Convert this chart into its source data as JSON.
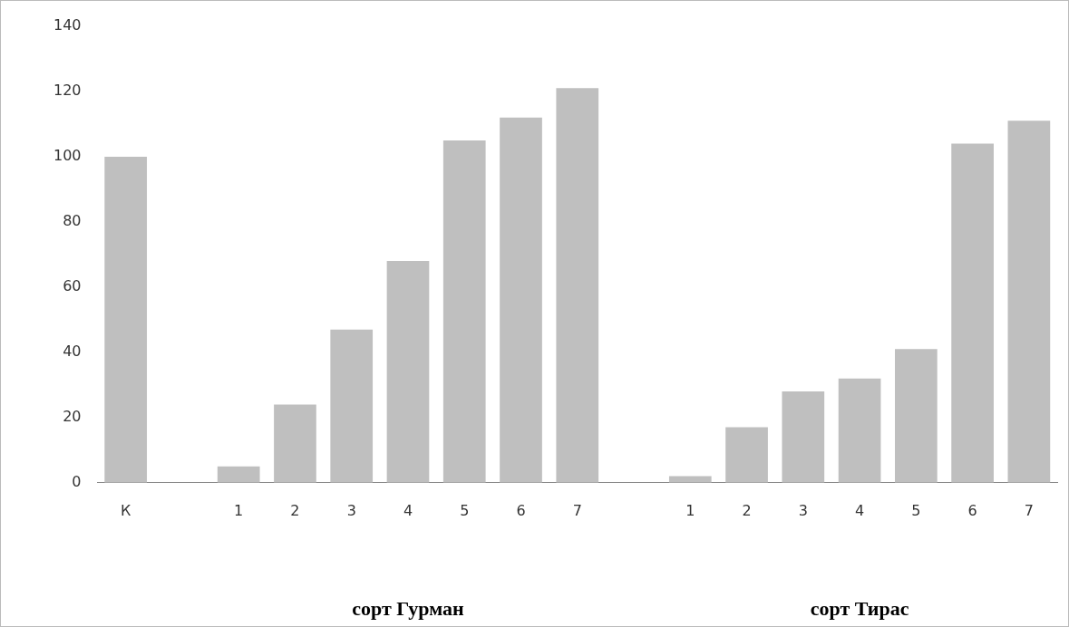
{
  "chart_data": {
    "type": "bar",
    "categories": [
      "К",
      null,
      "1",
      "2",
      "3",
      "4",
      "5",
      "6",
      "7",
      null,
      "1",
      "2",
      "3",
      "4",
      "5",
      "6",
      "7"
    ],
    "values": [
      100,
      null,
      5,
      24,
      47,
      68,
      105,
      112,
      121,
      null,
      2,
      17,
      28,
      32,
      41,
      104,
      111
    ],
    "color": "#bfbfbf",
    "ylim": [
      0,
      140
    ],
    "yticks": [
      0,
      20,
      40,
      60,
      80,
      100,
      120,
      140
    ],
    "grid": false,
    "legend": false,
    "annotations": [
      "сорт Гурман",
      "сорт Тирас"
    ]
  }
}
